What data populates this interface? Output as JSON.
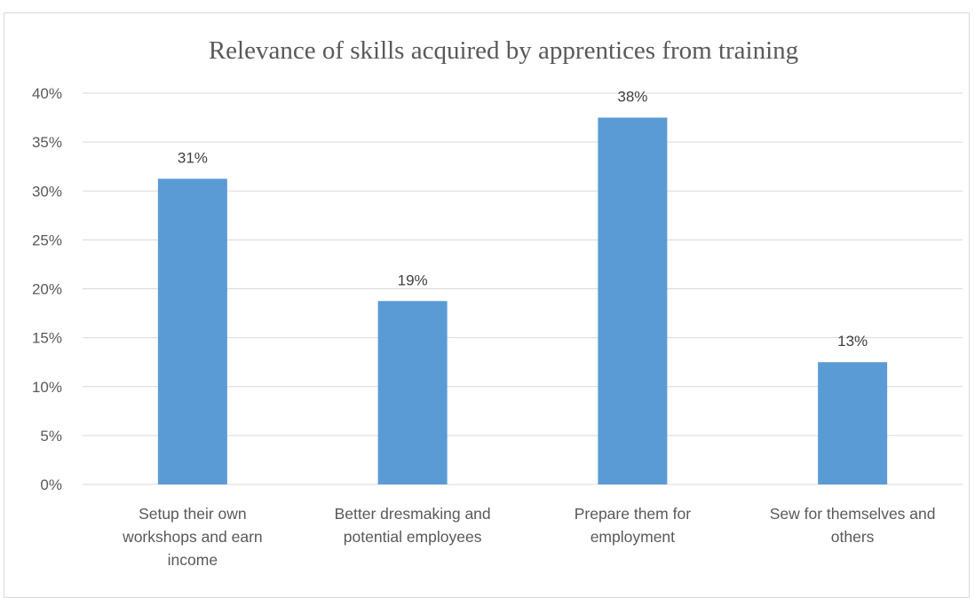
{
  "chart_data": {
    "type": "bar",
    "title": "Relevance of skills acquired by apprentices from training",
    "xlabel": "",
    "ylabel": "",
    "categories": [
      [
        "Setup their own",
        "workshops and earn",
        "income"
      ],
      [
        "Better dresmaking and",
        "potential employees"
      ],
      [
        "Prepare them for",
        "employment"
      ],
      [
        "Sew for themselves and",
        "others"
      ]
    ],
    "values": [
      31.25,
      18.75,
      37.5,
      12.5
    ],
    "data_labels": [
      "31%",
      "19%",
      "38%",
      "13%"
    ],
    "ylim": [
      0,
      40
    ],
    "y_ticks": [
      0,
      5,
      10,
      15,
      20,
      25,
      30,
      35,
      40
    ],
    "y_tick_labels": [
      "0%",
      "5%",
      "10%",
      "15%",
      "20%",
      "25%",
      "30%",
      "35%",
      "40%"
    ],
    "grid": true,
    "legend": "none",
    "colors": {
      "bar": "#5b9bd5",
      "grid": "#d9d9d9",
      "text": "#595959"
    }
  }
}
